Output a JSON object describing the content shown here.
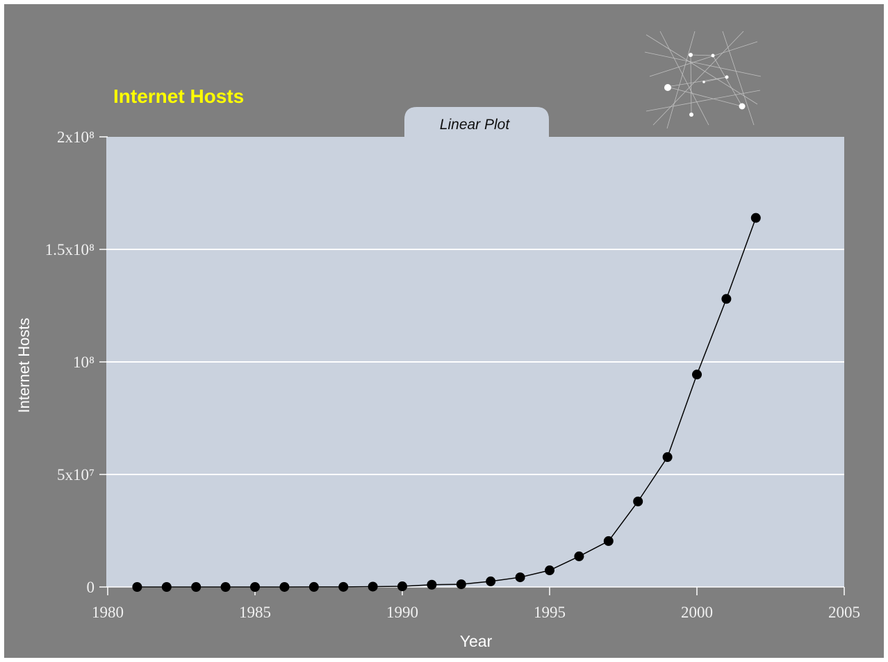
{
  "chart_data": {
    "type": "line",
    "title": "Internet Hosts",
    "subtitle": "Linear Plot",
    "x_label": "Year",
    "y_label": "Internet Hosts",
    "x": [
      1981,
      1982,
      1983,
      1984,
      1985,
      1986,
      1987,
      1988,
      1989,
      1990,
      1991,
      1992,
      1993,
      1994,
      1995,
      1996,
      1997,
      1998,
      1999,
      2000,
      2001,
      2002
    ],
    "series": [
      {
        "name": "Internet Hosts",
        "color": "#000000",
        "values": [
          200,
          200,
          600,
          1000,
          2000,
          5000,
          28000,
          56000,
          160000,
          300000,
          1000000,
          1200000,
          2500000,
          4300000,
          7400000,
          13600000,
          20400000,
          38000000,
          57700000,
          94400000,
          128000000,
          164000000
        ]
      }
    ],
    "xlim": [
      1980,
      2005
    ],
    "xticks": [
      1980,
      1985,
      1990,
      1995,
      2000,
      2005
    ],
    "ylim": [
      0,
      200000000
    ],
    "yticks": [
      0,
      {
        "value": 50000000,
        "label": "5x10⁷"
      },
      {
        "value": 100000000,
        "label": "10⁸"
      },
      {
        "value": 150000000,
        "label": "1.5x10⁸"
      },
      {
        "value": 200000000,
        "label": "2x10⁸"
      }
    ],
    "grid": true
  }
}
